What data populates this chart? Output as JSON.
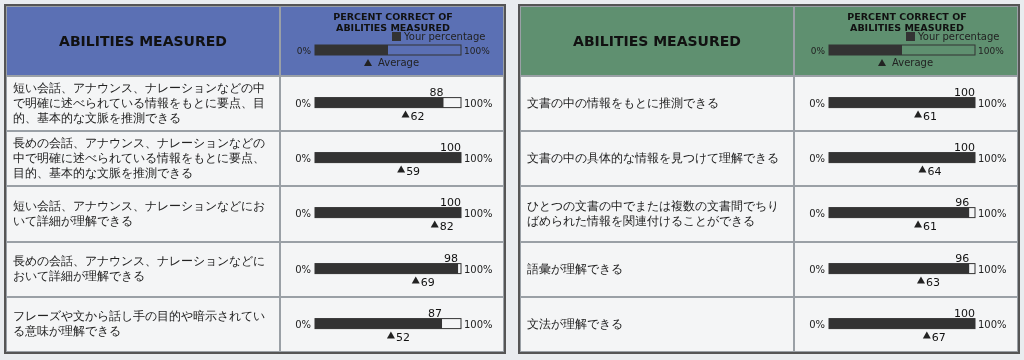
{
  "chart_data": [
    {
      "type": "bar",
      "orientation": "horizontal",
      "title": "PERCENT CORRECT OF ABILITIES MEASURED",
      "ylabel": "ABILITIES MEASURED",
      "legend": "top",
      "annotations": [
        "0%",
        "100%"
      ],
      "categories": [
        "短い会話、アナウンス、ナレーションなどの中で明確に述べられている情報をもとに要点、目的、基本的な文脈を推測できる",
        "長めの会話、アナウンス、ナレーションなどの中で明確に述べられている情報をもとに要点、目的、基本的な文脈を推測できる",
        "短い会話、アナウンス、ナレーションなどにおいて詳細が理解できる",
        "長めの会話、アナウンス、ナレーションなどにおいて詳細が理解できる",
        "フレーズや文から話し手の目的や暗示されている意味が理解できる"
      ],
      "series": [
        {
          "name": "Your percentage",
          "type": "bar",
          "color": "#333333",
          "values": [
            88,
            100,
            100,
            98,
            87
          ]
        },
        {
          "name": "Average",
          "type": "scatter",
          "marker": "triangle",
          "color": "#222222",
          "values": [
            62,
            59,
            82,
            69,
            52
          ]
        }
      ],
      "data_labels": true,
      "xlim": [
        0,
        100
      ]
    },
    {
      "type": "bar",
      "orientation": "horizontal",
      "title": "PERCENT CORRECT OF ABILITIES MEASURED",
      "ylabel": "ABILITIES MEASURED",
      "legend": "top",
      "annotations": [
        "0%",
        "100%"
      ],
      "categories": [
        "文書の中の情報をもとに推測できる",
        "文書の中の具体的な情報を見つけて理解できる",
        "ひとつの文書の中でまたは複数の文書間でちりばめられた情報を関連付けることができる",
        "語彙が理解できる",
        "文法が理解できる"
      ],
      "series": [
        {
          "name": "Your percentage",
          "type": "bar",
          "color": "#333333",
          "values": [
            100,
            100,
            96,
            96,
            100
          ]
        },
        {
          "name": "Average",
          "type": "scatter",
          "marker": "triangle",
          "color": "#222222",
          "values": [
            61,
            64,
            61,
            63,
            67
          ]
        }
      ],
      "data_labels": true,
      "xlim": [
        0,
        100
      ]
    }
  ]
}
